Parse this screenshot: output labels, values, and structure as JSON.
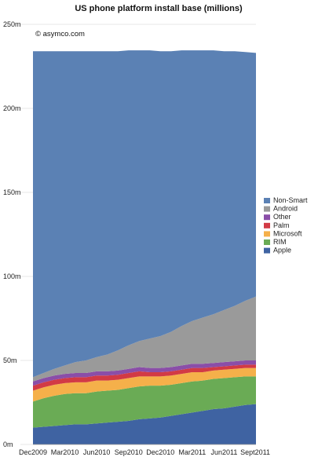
{
  "chart_data": {
    "type": "area",
    "stacked": true,
    "title": "US phone platform install base (millions)",
    "annotation": "© asymco.com",
    "xlabel": "",
    "ylabel": "",
    "ylim": [
      0,
      250
    ],
    "y_ticks": [
      "0m",
      "50m",
      "100m",
      "150m",
      "200m",
      "250m"
    ],
    "y_tick_values": [
      0,
      50,
      100,
      150,
      200,
      250
    ],
    "x_tick_labels": [
      "Dec2009",
      "Mar2010",
      "Jun2010",
      "Sep2010",
      "Dec2010",
      "Mar2011",
      "Jun2011",
      "Sept2011"
    ],
    "x": [
      "Dec2009",
      "Jan2010",
      "Feb2010",
      "Mar2010",
      "Apr2010",
      "May2010",
      "Jun2010",
      "Jul2010",
      "Aug2010",
      "Sep2010",
      "Oct2010",
      "Nov2010",
      "Dec2010",
      "Jan2011",
      "Feb2011",
      "Mar2011",
      "Apr2011",
      "May2011",
      "Jun2011",
      "Jul2011",
      "Aug2011",
      "Sept2011"
    ],
    "grid": true,
    "legend_position": "right",
    "series": [
      {
        "name": "Apple",
        "color": "#3f63a2",
        "values": [
          10,
          10.5,
          11,
          11.5,
          12,
          12,
          12.5,
          13,
          13.5,
          14,
          15,
          15.5,
          16,
          17,
          18,
          19,
          20,
          21,
          21.5,
          22.5,
          23.5,
          24
        ]
      },
      {
        "name": "RIM",
        "color": "#6aab55",
        "values": [
          15.5,
          17,
          18,
          18.5,
          18.5,
          18.5,
          19,
          19,
          19,
          19.5,
          19.5,
          19.5,
          19,
          18.5,
          18.5,
          18.5,
          18,
          18,
          18,
          17.5,
          17,
          16.5
        ]
      },
      {
        "name": "Microsoft",
        "color": "#f5b04a",
        "values": [
          6.5,
          6.5,
          6.5,
          6.5,
          6.5,
          6.5,
          6.5,
          6,
          6,
          6,
          6,
          5.5,
          5.5,
          5.5,
          5.5,
          5.5,
          5,
          5,
          5,
          5,
          5,
          5
        ]
      },
      {
        "name": "Palm",
        "color": "#d23a45",
        "values": [
          3,
          3,
          3,
          3,
          3,
          3,
          3,
          3,
          3,
          3,
          3,
          2.5,
          2.5,
          2.5,
          2.5,
          2.5,
          2.5,
          2,
          2,
          2,
          2,
          2
        ]
      },
      {
        "name": "Other",
        "color": "#8a4ea8",
        "values": [
          2.5,
          2.5,
          2.5,
          2.5,
          2.5,
          2.5,
          2.5,
          2.5,
          2.5,
          2.5,
          2.5,
          2.5,
          2.5,
          2.5,
          2.5,
          2.5,
          2.5,
          2.5,
          2.5,
          2.5,
          2.5,
          2.5
        ]
      },
      {
        "name": "Android",
        "color": "#9a9a9a",
        "values": [
          2.5,
          3,
          4,
          5,
          6.5,
          7.5,
          8.5,
          10,
          12,
          14,
          15.5,
          17.5,
          19,
          21,
          23.5,
          25.5,
          27.5,
          29,
          31,
          33,
          35.5,
          38
        ]
      },
      {
        "name": "Non-Smart",
        "color": "#5b81b4",
        "values": [
          194,
          191.5,
          189,
          187,
          185,
          184,
          182,
          180.5,
          178,
          175.5,
          173,
          171.5,
          169.5,
          167,
          164,
          161,
          159,
          157,
          154,
          151.5,
          148,
          145
        ]
      }
    ],
    "legend_order": [
      "Non-Smart",
      "Android",
      "Other",
      "Palm",
      "Microsoft",
      "RIM",
      "Apple"
    ]
  }
}
